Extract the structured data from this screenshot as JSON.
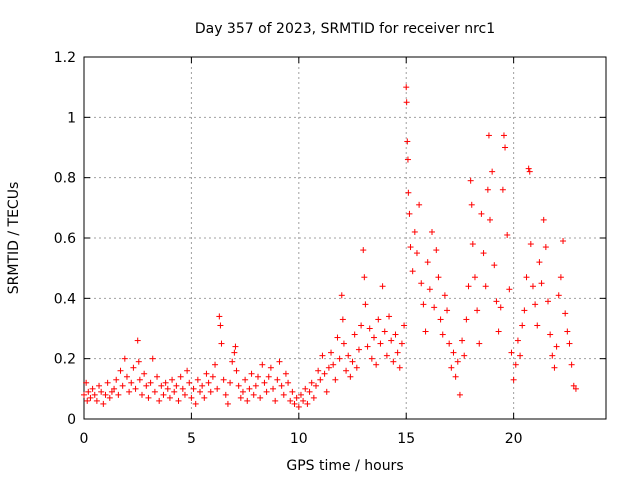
{
  "chart_data": {
    "type": "scatter",
    "title": "Day 357 of 2023, SRMTID for receiver nrc1",
    "xlabel": "GPS time / hours",
    "ylabel": "SRMTID / TECUs",
    "xlim": [
      0,
      24.3
    ],
    "ylim": [
      0,
      1.2
    ],
    "xticks": [
      0,
      5,
      10,
      15,
      20
    ],
    "xtick_labels": [
      "0",
      "5",
      "10",
      "15",
      "20"
    ],
    "yticks": [
      0,
      0.2,
      0.4,
      0.6,
      0.8,
      1.0,
      1.2
    ],
    "ytick_labels": [
      "0",
      "0.2",
      "0.4",
      "0.6",
      "0.8",
      "1",
      "1.2"
    ],
    "grid": true,
    "marker": "+",
    "series": [
      {
        "name": "SRMTID nrc1",
        "color": "#ff0000",
        "points": [
          [
            0.0,
            0.08
          ],
          [
            0.1,
            0.12
          ],
          [
            0.15,
            0.06
          ],
          [
            0.2,
            0.09
          ],
          [
            0.3,
            0.07
          ],
          [
            0.4,
            0.1
          ],
          [
            0.5,
            0.08
          ],
          [
            0.6,
            0.06
          ],
          [
            0.7,
            0.11
          ],
          [
            0.8,
            0.09
          ],
          [
            0.9,
            0.05
          ],
          [
            1.0,
            0.08
          ],
          [
            1.1,
            0.12
          ],
          [
            1.2,
            0.07
          ],
          [
            1.3,
            0.09
          ],
          [
            1.4,
            0.1
          ],
          [
            1.5,
            0.13
          ],
          [
            1.6,
            0.08
          ],
          [
            1.7,
            0.16
          ],
          [
            1.8,
            0.11
          ],
          [
            1.9,
            0.2
          ],
          [
            2.0,
            0.14
          ],
          [
            2.1,
            0.09
          ],
          [
            2.2,
            0.12
          ],
          [
            2.3,
            0.17
          ],
          [
            2.4,
            0.1
          ],
          [
            2.5,
            0.26
          ],
          [
            2.55,
            0.19
          ],
          [
            2.6,
            0.13
          ],
          [
            2.7,
            0.08
          ],
          [
            2.8,
            0.15
          ],
          [
            2.9,
            0.11
          ],
          [
            3.0,
            0.07
          ],
          [
            3.1,
            0.12
          ],
          [
            3.2,
            0.2
          ],
          [
            3.3,
            0.09
          ],
          [
            3.4,
            0.14
          ],
          [
            3.5,
            0.06
          ],
          [
            3.6,
            0.11
          ],
          [
            3.7,
            0.08
          ],
          [
            3.8,
            0.12
          ],
          [
            3.9,
            0.1
          ],
          [
            4.0,
            0.07
          ],
          [
            4.1,
            0.13
          ],
          [
            4.2,
            0.09
          ],
          [
            4.3,
            0.11
          ],
          [
            4.4,
            0.06
          ],
          [
            4.5,
            0.14
          ],
          [
            4.6,
            0.1
          ],
          [
            4.7,
            0.08
          ],
          [
            4.8,
            0.16
          ],
          [
            4.9,
            0.12
          ],
          [
            5.0,
            0.07
          ],
          [
            5.1,
            0.1
          ],
          [
            5.2,
            0.05
          ],
          [
            5.3,
            0.13
          ],
          [
            5.4,
            0.09
          ],
          [
            5.5,
            0.11
          ],
          [
            5.6,
            0.07
          ],
          [
            5.7,
            0.15
          ],
          [
            5.8,
            0.12
          ],
          [
            5.9,
            0.09
          ],
          [
            6.0,
            0.14
          ],
          [
            6.1,
            0.18
          ],
          [
            6.2,
            0.1
          ],
          [
            6.3,
            0.34
          ],
          [
            6.35,
            0.31
          ],
          [
            6.4,
            0.25
          ],
          [
            6.5,
            0.13
          ],
          [
            6.6,
            0.08
          ],
          [
            6.7,
            0.05
          ],
          [
            6.8,
            0.12
          ],
          [
            6.9,
            0.19
          ],
          [
            7.0,
            0.22
          ],
          [
            7.05,
            0.24
          ],
          [
            7.1,
            0.16
          ],
          [
            7.2,
            0.11
          ],
          [
            7.3,
            0.07
          ],
          [
            7.4,
            0.09
          ],
          [
            7.5,
            0.13
          ],
          [
            7.6,
            0.06
          ],
          [
            7.7,
            0.1
          ],
          [
            7.8,
            0.15
          ],
          [
            7.9,
            0.08
          ],
          [
            8.0,
            0.11
          ],
          [
            8.1,
            0.14
          ],
          [
            8.2,
            0.07
          ],
          [
            8.3,
            0.18
          ],
          [
            8.4,
            0.12
          ],
          [
            8.5,
            0.09
          ],
          [
            8.6,
            0.14
          ],
          [
            8.7,
            0.17
          ],
          [
            8.8,
            0.1
          ],
          [
            8.9,
            0.06
          ],
          [
            9.0,
            0.13
          ],
          [
            9.1,
            0.19
          ],
          [
            9.2,
            0.11
          ],
          [
            9.3,
            0.08
          ],
          [
            9.4,
            0.15
          ],
          [
            9.5,
            0.12
          ],
          [
            9.6,
            0.06
          ],
          [
            9.7,
            0.09
          ],
          [
            9.8,
            0.05
          ],
          [
            9.9,
            0.07
          ],
          [
            10.0,
            0.04
          ],
          [
            10.1,
            0.08
          ],
          [
            10.2,
            0.06
          ],
          [
            10.3,
            0.1
          ],
          [
            10.4,
            0.05
          ],
          [
            10.5,
            0.09
          ],
          [
            10.6,
            0.12
          ],
          [
            10.7,
            0.07
          ],
          [
            10.8,
            0.11
          ],
          [
            10.9,
            0.16
          ],
          [
            11.0,
            0.13
          ],
          [
            11.1,
            0.21
          ],
          [
            11.2,
            0.15
          ],
          [
            11.3,
            0.09
          ],
          [
            11.4,
            0.17
          ],
          [
            11.5,
            0.22
          ],
          [
            11.6,
            0.18
          ],
          [
            11.7,
            0.13
          ],
          [
            11.8,
            0.27
          ],
          [
            11.9,
            0.2
          ],
          [
            12.0,
            0.41
          ],
          [
            12.05,
            0.33
          ],
          [
            12.1,
            0.25
          ],
          [
            12.2,
            0.16
          ],
          [
            12.3,
            0.21
          ],
          [
            12.4,
            0.14
          ],
          [
            12.5,
            0.19
          ],
          [
            12.6,
            0.28
          ],
          [
            12.7,
            0.17
          ],
          [
            12.8,
            0.23
          ],
          [
            12.9,
            0.31
          ],
          [
            13.0,
            0.56
          ],
          [
            13.05,
            0.47
          ],
          [
            13.1,
            0.38
          ],
          [
            13.2,
            0.24
          ],
          [
            13.3,
            0.3
          ],
          [
            13.4,
            0.2
          ],
          [
            13.5,
            0.27
          ],
          [
            13.6,
            0.18
          ],
          [
            13.7,
            0.33
          ],
          [
            13.8,
            0.25
          ],
          [
            13.9,
            0.44
          ],
          [
            14.0,
            0.29
          ],
          [
            14.1,
            0.21
          ],
          [
            14.2,
            0.34
          ],
          [
            14.3,
            0.26
          ],
          [
            14.4,
            0.19
          ],
          [
            14.5,
            0.28
          ],
          [
            14.6,
            0.22
          ],
          [
            14.7,
            0.17
          ],
          [
            14.8,
            0.25
          ],
          [
            14.9,
            0.31
          ],
          [
            15.0,
            1.1
          ],
          [
            15.02,
            1.05
          ],
          [
            15.05,
            0.92
          ],
          [
            15.08,
            0.86
          ],
          [
            15.1,
            0.75
          ],
          [
            15.15,
            0.68
          ],
          [
            15.2,
            0.57
          ],
          [
            15.3,
            0.49
          ],
          [
            15.4,
            0.62
          ],
          [
            15.5,
            0.55
          ],
          [
            15.6,
            0.71
          ],
          [
            15.7,
            0.45
          ],
          [
            15.8,
            0.38
          ],
          [
            15.9,
            0.29
          ],
          [
            16.0,
            0.52
          ],
          [
            16.1,
            0.43
          ],
          [
            16.2,
            0.62
          ],
          [
            16.3,
            0.37
          ],
          [
            16.4,
            0.56
          ],
          [
            16.5,
            0.47
          ],
          [
            16.6,
            0.33
          ],
          [
            16.7,
            0.28
          ],
          [
            16.8,
            0.41
          ],
          [
            16.9,
            0.36
          ],
          [
            17.0,
            0.25
          ],
          [
            17.1,
            0.17
          ],
          [
            17.2,
            0.22
          ],
          [
            17.3,
            0.14
          ],
          [
            17.4,
            0.19
          ],
          [
            17.5,
            0.08
          ],
          [
            17.6,
            0.26
          ],
          [
            17.7,
            0.21
          ],
          [
            17.8,
            0.33
          ],
          [
            17.9,
            0.44
          ],
          [
            18.0,
            0.79
          ],
          [
            18.05,
            0.71
          ],
          [
            18.1,
            0.58
          ],
          [
            18.2,
            0.47
          ],
          [
            18.3,
            0.36
          ],
          [
            18.4,
            0.25
          ],
          [
            18.5,
            0.68
          ],
          [
            18.6,
            0.55
          ],
          [
            18.7,
            0.44
          ],
          [
            18.8,
            0.76
          ],
          [
            18.85,
            0.94
          ],
          [
            18.9,
            0.66
          ],
          [
            19.0,
            0.82
          ],
          [
            19.1,
            0.51
          ],
          [
            19.2,
            0.39
          ],
          [
            19.3,
            0.29
          ],
          [
            19.4,
            0.37
          ],
          [
            19.5,
            0.76
          ],
          [
            19.55,
            0.94
          ],
          [
            19.6,
            0.9
          ],
          [
            19.7,
            0.61
          ],
          [
            19.8,
            0.43
          ],
          [
            19.9,
            0.22
          ],
          [
            20.0,
            0.13
          ],
          [
            20.1,
            0.18
          ],
          [
            20.2,
            0.26
          ],
          [
            20.3,
            0.21
          ],
          [
            20.4,
            0.31
          ],
          [
            20.5,
            0.36
          ],
          [
            20.6,
            0.47
          ],
          [
            20.7,
            0.83
          ],
          [
            20.75,
            0.82
          ],
          [
            20.8,
            0.58
          ],
          [
            20.9,
            0.44
          ],
          [
            21.0,
            0.38
          ],
          [
            21.1,
            0.31
          ],
          [
            21.2,
            0.52
          ],
          [
            21.3,
            0.45
          ],
          [
            21.4,
            0.66
          ],
          [
            21.5,
            0.57
          ],
          [
            21.6,
            0.39
          ],
          [
            21.7,
            0.28
          ],
          [
            21.8,
            0.21
          ],
          [
            21.9,
            0.17
          ],
          [
            22.0,
            0.24
          ],
          [
            22.1,
            0.41
          ],
          [
            22.2,
            0.47
          ],
          [
            22.3,
            0.59
          ],
          [
            22.4,
            0.35
          ],
          [
            22.5,
            0.29
          ],
          [
            22.6,
            0.25
          ],
          [
            22.7,
            0.18
          ],
          [
            22.8,
            0.11
          ],
          [
            22.9,
            0.1
          ]
        ]
      }
    ]
  }
}
